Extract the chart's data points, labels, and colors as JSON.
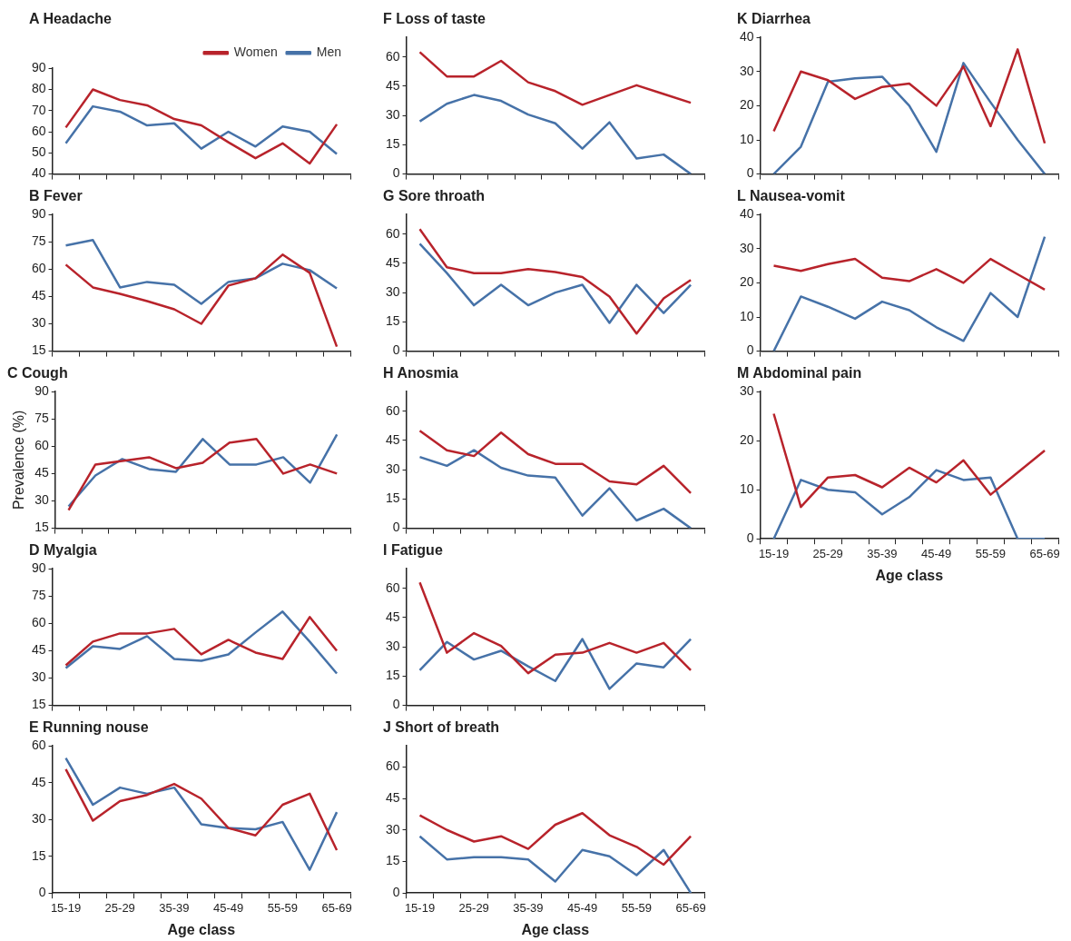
{
  "chart_data": [
    {
      "type": "line",
      "title": "A Headache",
      "categories": [
        null,
        null,
        null,
        null,
        null,
        null,
        null,
        null,
        null,
        null,
        null
      ],
      "ylim": [
        40,
        90
      ],
      "yticks": [
        40,
        50,
        60,
        70,
        80,
        90
      ],
      "tick_labels": "y",
      "legend": "top right",
      "series": [
        {
          "name": "Women",
          "color": "#b8232b",
          "values": [
            62,
            80,
            75,
            72.5,
            66,
            63,
            55,
            47.5,
            54.5,
            45,
            63.5
          ]
        },
        {
          "name": "Men",
          "color": "#4672a8",
          "values": [
            54.5,
            72,
            69.5,
            63,
            64,
            52,
            60,
            53,
            62.5,
            60,
            49.5
          ]
        }
      ]
    },
    {
      "type": "line",
      "title": "B Fever",
      "categories": [
        null,
        null,
        null,
        null,
        null,
        null,
        null,
        null,
        null,
        null,
        null
      ],
      "ylim": [
        15,
        90
      ],
      "yticks": [
        15,
        30,
        45,
        60,
        75,
        90
      ],
      "tick_labels": "y",
      "series": [
        {
          "color": "#b8232b",
          "values": [
            62.5,
            50,
            46.5,
            42.5,
            38,
            30,
            51,
            55,
            68,
            58,
            17.5
          ]
        },
        {
          "color": "#4672a8",
          "values": [
            73,
            76,
            50,
            53,
            51.5,
            41,
            53,
            55,
            63,
            59.5,
            49.5
          ]
        }
      ]
    },
    {
      "type": "line",
      "title": "C Cough",
      "ylabel": "Prevalence (%)",
      "categories": [
        null,
        null,
        null,
        null,
        null,
        null,
        null,
        null,
        null,
        null,
        null
      ],
      "ylim": [
        15,
        90
      ],
      "yticks": [
        15,
        30,
        45,
        60,
        75,
        90
      ],
      "tick_labels": "y",
      "series": [
        {
          "color": "#b8232b",
          "values": [
            25,
            50,
            52,
            54,
            48,
            51,
            62,
            64,
            45,
            50,
            45
          ]
        },
        {
          "color": "#4672a8",
          "values": [
            27,
            44,
            53,
            47.5,
            46,
            64,
            50,
            50,
            54,
            40,
            66.5
          ]
        }
      ]
    },
    {
      "type": "line",
      "title": "D Myalgia",
      "categories": [
        null,
        null,
        null,
        null,
        null,
        null,
        null,
        null,
        null,
        null,
        null
      ],
      "ylim": [
        15,
        90
      ],
      "yticks": [
        15,
        30,
        45,
        60,
        75,
        90
      ],
      "tick_labels": "y",
      "series": [
        {
          "color": "#b8232b",
          "values": [
            37,
            50,
            54.5,
            54.5,
            57,
            43,
            51,
            44,
            40.5,
            63.5,
            45
          ]
        },
        {
          "color": "#4672a8",
          "values": [
            35.5,
            47.5,
            46,
            53,
            40.5,
            39.5,
            43,
            55,
            66.5,
            50,
            32.5
          ]
        }
      ]
    },
    {
      "type": "line",
      "title": "E Running nouse",
      "xlabel": "Age class",
      "categories": [
        "15-19",
        null,
        "25-29",
        null,
        "35-39",
        null,
        "45-49",
        null,
        "55-59",
        null,
        "65-69"
      ],
      "ylim": [
        0,
        60
      ],
      "yticks": [
        0,
        15,
        30,
        45,
        60
      ],
      "series": [
        {
          "color": "#b8232b",
          "values": [
            50.5,
            29.5,
            37.5,
            40,
            44.5,
            38.5,
            26.5,
            23.5,
            36,
            40.5,
            17.5
          ]
        },
        {
          "color": "#4672a8",
          "values": [
            55,
            36,
            43,
            40.5,
            43,
            28,
            26.5,
            26,
            29,
            9.5,
            33
          ]
        }
      ]
    },
    {
      "type": "line",
      "title": "F Loss of taste",
      "categories": [
        null,
        null,
        null,
        null,
        null,
        null,
        null,
        null,
        null,
        null,
        null
      ],
      "ylim": [
        0,
        70
      ],
      "yticks": [
        0,
        15,
        30,
        45,
        60
      ],
      "tick_labels": "y",
      "series": [
        {
          "color": "#b8232b",
          "values": [
            62.5,
            50,
            50,
            58,
            47,
            42.5,
            35.5,
            40.5,
            45.5,
            41,
            36.5
          ]
        },
        {
          "color": "#4672a8",
          "values": [
            27,
            36,
            40.5,
            37.5,
            30.5,
            26,
            13,
            26.5,
            8,
            10,
            0
          ]
        }
      ]
    },
    {
      "type": "line",
      "title": "G Sore throath",
      "categories": [
        null,
        null,
        null,
        null,
        null,
        null,
        null,
        null,
        null,
        null,
        null
      ],
      "ylim": [
        0,
        70
      ],
      "yticks": [
        0,
        15,
        30,
        45,
        60
      ],
      "tick_labels": "y",
      "series": [
        {
          "color": "#b8232b",
          "values": [
            62.5,
            43,
            40,
            40,
            42,
            40.5,
            38,
            28,
            9,
            27,
            36.5
          ]
        },
        {
          "color": "#4672a8",
          "values": [
            55,
            40,
            23.5,
            34,
            23.5,
            30,
            34,
            14.5,
            34,
            19.5,
            34
          ]
        }
      ]
    },
    {
      "type": "line",
      "title": "H Anosmia",
      "categories": [
        null,
        null,
        null,
        null,
        null,
        null,
        null,
        null,
        null,
        null,
        null
      ],
      "ylim": [
        0,
        70
      ],
      "yticks": [
        0,
        15,
        30,
        45,
        60
      ],
      "tick_labels": "y",
      "series": [
        {
          "color": "#b8232b",
          "values": [
            50,
            40,
            37,
            49,
            38,
            33,
            33,
            24,
            22.5,
            32,
            18
          ]
        },
        {
          "color": "#4672a8",
          "values": [
            36.5,
            32,
            40,
            31,
            27,
            26,
            6.5,
            20.5,
            4,
            10,
            0
          ]
        }
      ]
    },
    {
      "type": "line",
      "title": "I Fatigue",
      "categories": [
        null,
        null,
        null,
        null,
        null,
        null,
        null,
        null,
        null,
        null,
        null
      ],
      "ylim": [
        0,
        70
      ],
      "yticks": [
        0,
        15,
        30,
        45,
        60
      ],
      "tick_labels": "y",
      "series": [
        {
          "color": "#b8232b",
          "values": [
            63,
            27,
            37,
            30.5,
            16.5,
            26,
            27,
            32,
            27,
            32,
            18
          ]
        },
        {
          "color": "#4672a8",
          "values": [
            18,
            32.5,
            23.5,
            28,
            20,
            12.5,
            34,
            8.5,
            21.5,
            19.5,
            34
          ]
        }
      ]
    },
    {
      "type": "line",
      "title": "J Short of breath",
      "xlabel": "Age class",
      "categories": [
        "15-19",
        null,
        "25-29",
        null,
        "35-39",
        null,
        "45-49",
        null,
        "55-59",
        null,
        "65-69"
      ],
      "ylim": [
        0,
        70
      ],
      "yticks": [
        0,
        15,
        30,
        45,
        60
      ],
      "series": [
        {
          "color": "#b8232b",
          "values": [
            37,
            30,
            24.5,
            27,
            21,
            32.5,
            38,
            27.5,
            22,
            13.5,
            27
          ]
        },
        {
          "color": "#4672a8",
          "values": [
            27,
            16,
            17,
            17,
            16,
            5.5,
            20.5,
            17.5,
            8.5,
            20.5,
            0
          ]
        }
      ]
    },
    {
      "type": "line",
      "title": "K Diarrhea",
      "categories": [
        null,
        null,
        null,
        null,
        null,
        null,
        null,
        null,
        null,
        null,
        null
      ],
      "ylim": [
        0,
        40
      ],
      "yticks": [
        0,
        10,
        20,
        30,
        40
      ],
      "tick_labels": "y",
      "series": [
        {
          "color": "#b8232b",
          "values": [
            12.5,
            30,
            27.5,
            22,
            25.5,
            26.5,
            20,
            31.5,
            14,
            36.5,
            9
          ]
        },
        {
          "color": "#4672a8",
          "values": [
            0,
            8,
            27,
            28,
            28.5,
            20,
            6.5,
            32.5,
            21,
            10,
            0
          ]
        }
      ]
    },
    {
      "type": "line",
      "title": "L Nausea-vomit",
      "categories": [
        null,
        null,
        null,
        null,
        null,
        null,
        null,
        null,
        null,
        null,
        null
      ],
      "ylim": [
        0,
        40
      ],
      "yticks": [
        0,
        10,
        20,
        30,
        40
      ],
      "tick_labels": "y",
      "series": [
        {
          "color": "#b8232b",
          "values": [
            25,
            23.5,
            25.5,
            27,
            21.5,
            20.5,
            24,
            20,
            27,
            22.5,
            18
          ]
        },
        {
          "color": "#4672a8",
          "values": [
            0,
            16,
            13,
            9.5,
            14.5,
            12,
            7,
            3,
            17,
            10,
            33.5
          ]
        }
      ]
    },
    {
      "type": "line",
      "title": "M Abdominal pain",
      "xlabel": "Age class",
      "categories": [
        "15-19",
        null,
        "25-29",
        null,
        "35-39",
        null,
        "45-49",
        null,
        "55-59",
        null,
        "65-69"
      ],
      "ylim": [
        0,
        30
      ],
      "yticks": [
        0,
        10,
        20,
        30
      ],
      "series": [
        {
          "color": "#b8232b",
          "values": [
            25.5,
            6.5,
            12.5,
            13,
            10.5,
            14.5,
            11.5,
            16,
            9,
            13.5,
            18
          ]
        },
        {
          "color": "#4672a8",
          "values": [
            0,
            12,
            10,
            9.5,
            5,
            8.5,
            14,
            12,
            12.5,
            0,
            0
          ]
        }
      ]
    }
  ]
}
